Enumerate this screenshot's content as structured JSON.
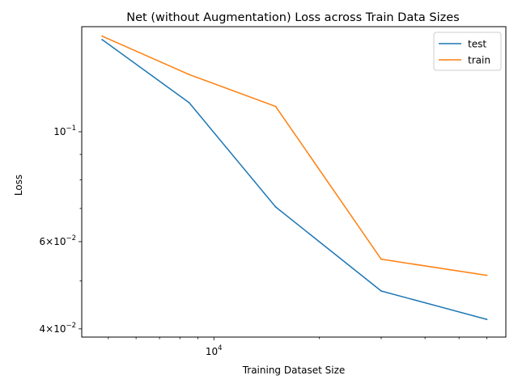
{
  "chart_data": {
    "type": "line",
    "title": "Net (without Augmentation) Loss across Train Data Sizes",
    "xlabel": "Training Dataset Size",
    "ylabel": "Loss",
    "xscale": "log",
    "yscale": "log",
    "xlim": [
      4200,
      68000
    ],
    "ylim": [
      0.0385,
      0.163
    ],
    "x": [
      4800,
      8500,
      15000,
      30000,
      60000
    ],
    "series": [
      {
        "name": "test",
        "color": "#1f77b4",
        "values": [
          0.1535,
          0.1145,
          0.0705,
          0.0477,
          0.0418
        ]
      },
      {
        "name": "train",
        "color": "#ff7f0e",
        "values": [
          0.156,
          0.1305,
          0.1125,
          0.0553,
          0.0513
        ]
      }
    ],
    "x_major_ticks": [
      {
        "value": 10000,
        "base": "10",
        "exp": "4"
      }
    ],
    "x_minor_ticks": [
      5000,
      6000,
      7000,
      8000,
      9000,
      20000,
      30000,
      40000,
      50000,
      60000
    ],
    "y_major_ticks": [
      {
        "value": 0.1,
        "mantissa": "",
        "base": "10",
        "exp": "−1"
      },
      {
        "value": 0.06,
        "mantissa": "6×",
        "base": "10",
        "exp": "−2"
      },
      {
        "value": 0.04,
        "mantissa": "4×",
        "base": "10",
        "exp": "−2"
      }
    ],
    "y_minor_ticks": [
      0.05,
      0.07,
      0.08,
      0.09
    ],
    "legend": {
      "placement": "upper-right"
    },
    "grid": false
  }
}
